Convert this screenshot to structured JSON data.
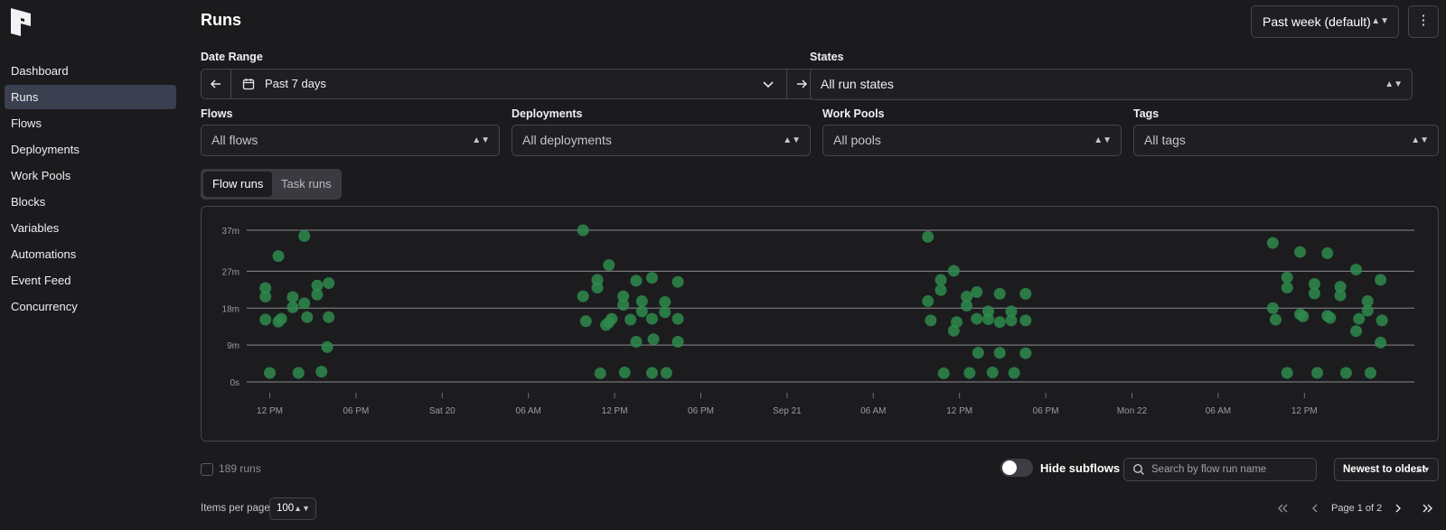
{
  "sidebar": {
    "items": [
      {
        "label": "Dashboard",
        "active": false
      },
      {
        "label": "Runs",
        "active": true
      },
      {
        "label": "Flows",
        "active": false
      },
      {
        "label": "Deployments",
        "active": false
      },
      {
        "label": "Work Pools",
        "active": false
      },
      {
        "label": "Blocks",
        "active": false
      },
      {
        "label": "Variables",
        "active": false
      },
      {
        "label": "Automations",
        "active": false
      },
      {
        "label": "Event Feed",
        "active": false
      },
      {
        "label": "Concurrency",
        "active": false
      }
    ]
  },
  "header": {
    "title": "Runs",
    "range_select": "Past week (default)",
    "menu_icon": "⋮"
  },
  "filters": {
    "date_range_label": "Date Range",
    "date_range_value": "Past 7 days",
    "states_label": "States",
    "states_value": "All run states",
    "flows_label": "Flows",
    "flows_value": "All flows",
    "deployments_label": "Deployments",
    "deployments_value": "All deployments",
    "work_pools_label": "Work Pools",
    "work_pools_value": "All pools",
    "tags_label": "Tags",
    "tags_value": "All tags"
  },
  "tabs": [
    {
      "label": "Flow runs",
      "active": true
    },
    {
      "label": "Task runs",
      "active": false
    }
  ],
  "chart_data": {
    "type": "scatter",
    "y_ticks": [
      "37m",
      "27m",
      "18m",
      "9m",
      "0s"
    ],
    "y_tick_values": [
      37,
      27,
      18,
      9,
      0
    ],
    "x_ticks": [
      "12 PM",
      "06 PM",
      "Sat 20",
      "06 AM",
      "12 PM",
      "06 PM",
      "Sep 21",
      "06 AM",
      "12 PM",
      "06 PM",
      "Mon 22",
      "06 AM",
      "12 PM"
    ],
    "x_tick_hours": [
      12,
      18,
      24,
      30,
      36,
      42,
      48,
      54,
      60,
      66,
      72,
      78,
      84
    ],
    "ylim": [
      0,
      37
    ],
    "grid": true,
    "point_color": "#2e8a4c",
    "points": [
      [
        11.7,
        15.2
      ],
      [
        11.7,
        22.9
      ],
      [
        11.7,
        20.8
      ],
      [
        12.0,
        2.2
      ],
      [
        12.6,
        30.7
      ],
      [
        12.6,
        14.7
      ],
      [
        12.8,
        15.4
      ],
      [
        13.6,
        18.2
      ],
      [
        13.6,
        20.7
      ],
      [
        14.0,
        2.2
      ],
      [
        14.4,
        19.2
      ],
      [
        14.4,
        35.6
      ],
      [
        14.6,
        15.8
      ],
      [
        15.3,
        23.5
      ],
      [
        15.3,
        21.3
      ],
      [
        15.6,
        2.5
      ],
      [
        16.0,
        8.5
      ],
      [
        16.1,
        24.1
      ],
      [
        16.1,
        15.8
      ],
      [
        33.8,
        37.0
      ],
      [
        33.8,
        20.9
      ],
      [
        34.0,
        14.8
      ],
      [
        34.8,
        24.9
      ],
      [
        34.8,
        23.0
      ],
      [
        35.0,
        2.1
      ],
      [
        35.4,
        13.9
      ],
      [
        35.6,
        28.5
      ],
      [
        35.6,
        14.5
      ],
      [
        35.8,
        15.4
      ],
      [
        36.6,
        20.9
      ],
      [
        36.6,
        18.8
      ],
      [
        36.7,
        2.3
      ],
      [
        37.1,
        15.2
      ],
      [
        37.5,
        24.7
      ],
      [
        37.5,
        9.8
      ],
      [
        37.9,
        19.7
      ],
      [
        37.9,
        17.2
      ],
      [
        38.6,
        2.2
      ],
      [
        38.6,
        25.4
      ],
      [
        38.6,
        15.4
      ],
      [
        38.7,
        10.4
      ],
      [
        39.5,
        19.5
      ],
      [
        39.5,
        17.0
      ],
      [
        39.6,
        2.2
      ],
      [
        40.4,
        24.4
      ],
      [
        40.4,
        15.4
      ],
      [
        40.4,
        9.8
      ],
      [
        57.8,
        35.4
      ],
      [
        57.8,
        19.7
      ],
      [
        58.0,
        15.0
      ],
      [
        58.7,
        24.9
      ],
      [
        58.7,
        22.4
      ],
      [
        58.9,
        2.1
      ],
      [
        59.6,
        27.1
      ],
      [
        59.6,
        12.5
      ],
      [
        59.8,
        14.6
      ],
      [
        60.5,
        20.8
      ],
      [
        60.5,
        18.6
      ],
      [
        60.7,
        2.2
      ],
      [
        61.2,
        21.9
      ],
      [
        61.2,
        15.4
      ],
      [
        61.3,
        7.1
      ],
      [
        62.0,
        17.2
      ],
      [
        62.0,
        15.3
      ],
      [
        62.3,
        2.3
      ],
      [
        62.8,
        21.5
      ],
      [
        62.8,
        14.6
      ],
      [
        62.8,
        7.1
      ],
      [
        63.6,
        17.2
      ],
      [
        63.6,
        15.0
      ],
      [
        63.8,
        2.2
      ],
      [
        64.6,
        21.5
      ],
      [
        64.6,
        15.0
      ],
      [
        64.6,
        7.0
      ],
      [
        81.8,
        33.9
      ],
      [
        81.8,
        18.0
      ],
      [
        82.0,
        15.2
      ],
      [
        82.8,
        25.5
      ],
      [
        82.8,
        23.0
      ],
      [
        82.8,
        2.2
      ],
      [
        83.7,
        31.7
      ],
      [
        83.7,
        16.5
      ],
      [
        83.9,
        16.0
      ],
      [
        84.7,
        23.9
      ],
      [
        84.7,
        21.6
      ],
      [
        84.9,
        2.2
      ],
      [
        85.6,
        31.4
      ],
      [
        85.6,
        16.1
      ],
      [
        85.8,
        15.6
      ],
      [
        86.5,
        23.2
      ],
      [
        86.5,
        21.1
      ],
      [
        86.9,
        2.2
      ],
      [
        87.6,
        27.4
      ],
      [
        87.6,
        12.4
      ],
      [
        87.8,
        15.4
      ],
      [
        88.4,
        19.7
      ],
      [
        88.4,
        17.4
      ],
      [
        88.6,
        2.2
      ],
      [
        89.3,
        24.9
      ],
      [
        89.3,
        9.6
      ],
      [
        89.4,
        15.0
      ]
    ]
  },
  "footer": {
    "runs_count": "189 runs",
    "hide_subflows_label": "Hide subflows",
    "search_placeholder": "Search by flow run name",
    "sort_value": "Newest to oldest",
    "items_per_page_label": "Items per page",
    "items_per_page_value": "100",
    "page_text": "Page 1 of 2"
  }
}
